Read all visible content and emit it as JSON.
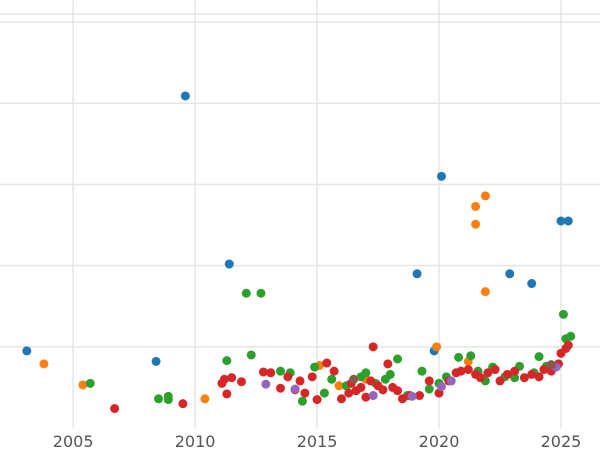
{
  "chart_data": {
    "type": "scatter",
    "title": "",
    "xlabel": "",
    "ylabel": "",
    "xlim": [
      2002,
      2026.6
    ],
    "ylim": [
      0,
      5.1
    ],
    "x_ticks": [
      2005,
      2010,
      2015,
      2020,
      2025
    ],
    "x_tick_labels": [
      "2005",
      "2010",
      "2015",
      "2020",
      "2025"
    ],
    "y_grid": [
      1,
      2,
      3,
      4,
      5
    ],
    "grid": true,
    "series": [
      {
        "color": "#1f77b4",
        "points": [
          [
            2003.1,
            0.95
          ],
          [
            2008.4,
            0.82
          ],
          [
            2009.6,
            4.09
          ],
          [
            2011.4,
            2.02
          ],
          [
            2019.1,
            1.9
          ],
          [
            2019.8,
            0.95
          ],
          [
            2020.1,
            3.1
          ],
          [
            2022.9,
            1.9
          ],
          [
            2023.8,
            1.78
          ],
          [
            2025.0,
            2.55
          ],
          [
            2025.3,
            2.55
          ]
        ]
      },
      {
        "color": "#ff7f0e",
        "points": [
          [
            2003.8,
            0.79
          ],
          [
            2005.4,
            0.53
          ],
          [
            2010.4,
            0.36
          ],
          [
            2015.1,
            0.77
          ],
          [
            2015.9,
            0.52
          ],
          [
            2017.0,
            0.6
          ],
          [
            2019.9,
            1.0
          ],
          [
            2021.2,
            0.82
          ],
          [
            2021.5,
            2.73
          ],
          [
            2021.5,
            2.51
          ],
          [
            2021.9,
            2.86
          ],
          [
            2021.9,
            1.68
          ]
        ]
      },
      {
        "color": "#2ca02c",
        "points": [
          [
            2005.7,
            0.55
          ],
          [
            2008.5,
            0.36
          ],
          [
            2008.9,
            0.39
          ],
          [
            2008.9,
            0.35
          ],
          [
            2011.3,
            0.83
          ],
          [
            2012.1,
            1.66
          ],
          [
            2012.3,
            0.9
          ],
          [
            2012.7,
            1.66
          ],
          [
            2013.5,
            0.7
          ],
          [
            2013.9,
            0.68
          ],
          [
            2014.4,
            0.33
          ],
          [
            2014.9,
            0.75
          ],
          [
            2015.3,
            0.43
          ],
          [
            2015.6,
            0.6
          ],
          [
            2016.2,
            0.52
          ],
          [
            2016.8,
            0.63
          ],
          [
            2017.0,
            0.68
          ],
          [
            2017.4,
            0.55
          ],
          [
            2017.8,
            0.6
          ],
          [
            2018.0,
            0.66
          ],
          [
            2018.3,
            0.85
          ],
          [
            2018.7,
            0.4
          ],
          [
            2019.3,
            0.7
          ],
          [
            2019.6,
            0.48
          ],
          [
            2020.0,
            0.55
          ],
          [
            2020.3,
            0.63
          ],
          [
            2020.8,
            0.87
          ],
          [
            2021.3,
            0.89
          ],
          [
            2021.6,
            0.7
          ],
          [
            2021.9,
            0.58
          ],
          [
            2022.2,
            0.75
          ],
          [
            2022.7,
            0.63
          ],
          [
            2023.1,
            0.62
          ],
          [
            2023.3,
            0.76
          ],
          [
            2023.9,
            0.68
          ],
          [
            2024.1,
            0.88
          ],
          [
            2024.4,
            0.76
          ],
          [
            2025.1,
            1.4
          ],
          [
            2025.2,
            1.1
          ],
          [
            2025.4,
            1.13
          ]
        ]
      },
      {
        "color": "#d62728",
        "points": [
          [
            2006.7,
            0.24
          ],
          [
            2009.5,
            0.3
          ],
          [
            2011.1,
            0.55
          ],
          [
            2011.2,
            0.6
          ],
          [
            2011.3,
            0.42
          ],
          [
            2011.5,
            0.62
          ],
          [
            2011.9,
            0.57
          ],
          [
            2012.8,
            0.69
          ],
          [
            2013.1,
            0.68
          ],
          [
            2013.5,
            0.49
          ],
          [
            2013.8,
            0.63
          ],
          [
            2014.1,
            0.47
          ],
          [
            2014.3,
            0.58
          ],
          [
            2014.5,
            0.43
          ],
          [
            2014.8,
            0.63
          ],
          [
            2015.0,
            0.35
          ],
          [
            2015.4,
            0.8
          ],
          [
            2015.7,
            0.7
          ],
          [
            2016.0,
            0.36
          ],
          [
            2016.3,
            0.43
          ],
          [
            2016.4,
            0.55
          ],
          [
            2016.6,
            0.46
          ],
          [
            2016.8,
            0.5
          ],
          [
            2017.0,
            0.38
          ],
          [
            2017.2,
            0.58
          ],
          [
            2017.3,
            1.0
          ],
          [
            2017.5,
            0.52
          ],
          [
            2017.7,
            0.47
          ],
          [
            2017.9,
            0.79
          ],
          [
            2018.1,
            0.5
          ],
          [
            2018.3,
            0.46
          ],
          [
            2018.5,
            0.36
          ],
          [
            2018.8,
            0.4
          ],
          [
            2019.2,
            0.4
          ],
          [
            2019.6,
            0.58
          ],
          [
            2020.0,
            0.43
          ],
          [
            2020.4,
            0.58
          ],
          [
            2020.7,
            0.68
          ],
          [
            2020.9,
            0.7
          ],
          [
            2021.2,
            0.72
          ],
          [
            2021.5,
            0.66
          ],
          [
            2021.7,
            0.62
          ],
          [
            2022.0,
            0.68
          ],
          [
            2022.3,
            0.72
          ],
          [
            2022.5,
            0.58
          ],
          [
            2022.8,
            0.66
          ],
          [
            2023.1,
            0.7
          ],
          [
            2023.5,
            0.62
          ],
          [
            2023.8,
            0.66
          ],
          [
            2024.1,
            0.63
          ],
          [
            2024.3,
            0.72
          ],
          [
            2024.6,
            0.7
          ],
          [
            2024.9,
            0.79
          ],
          [
            2025.0,
            0.92
          ],
          [
            2025.2,
            0.98
          ],
          [
            2025.3,
            1.02
          ]
        ]
      },
      {
        "color": "#9467bd",
        "points": [
          [
            2012.9,
            0.54
          ],
          [
            2014.1,
            0.48
          ],
          [
            2017.3,
            0.4
          ],
          [
            2018.9,
            0.39
          ],
          [
            2020.1,
            0.51
          ],
          [
            2020.5,
            0.58
          ],
          [
            2024.8,
            0.75
          ]
        ]
      },
      {
        "color": "#8c564b",
        "points": [
          [
            2016.5,
            0.6
          ],
          [
            2024.6,
            0.78
          ]
        ]
      }
    ]
  }
}
